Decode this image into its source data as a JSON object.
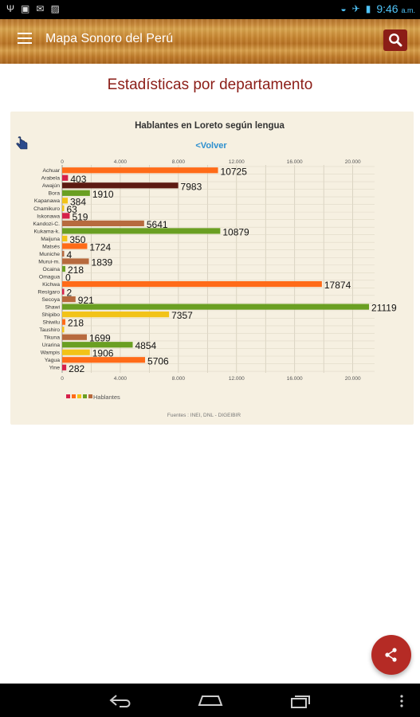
{
  "status_bar": {
    "time": "9:46",
    "ampm": "a.m."
  },
  "app": {
    "title": "Mapa Sonoro del Perú"
  },
  "page": {
    "title": "Estadísticas por departamento"
  },
  "chart": {
    "back_link": "<Volver",
    "footer": "Fuentes : INEI, DNL - DIGEIBIR",
    "legend_label": "Hablantes"
  },
  "colors": {
    "accent": "#8b1d17",
    "orange": "#ff6b18",
    "red": "#d6204a",
    "dark": "#5c1a12",
    "green": "#6a9f22",
    "yellow": "#f2c318",
    "brown": "#b76a3e",
    "share": "#b52b25"
  },
  "chart_data": {
    "type": "bar",
    "orientation": "horizontal",
    "title": "Hablantes en Loreto según lengua",
    "xlim": [
      0,
      21500
    ],
    "xticks": [
      "0",
      "4.000",
      "8.000",
      "12.000",
      "16.000",
      "20.000"
    ],
    "grid": true,
    "legend": "bottom-left",
    "categories": [
      "Achuar",
      "Arabela",
      "Awajún",
      "Bora",
      "Kapanawa",
      "Chamikuro",
      "Iskonawa",
      "Kandozi-C.",
      "Kukama-k.",
      "Maijuna",
      "Matsés",
      "Muniche",
      "Murui-m.",
      "Ocaina",
      "Omagua",
      "Kichwa",
      "Resígaro",
      "Secoya",
      "Shawi",
      "Shipibo",
      "Shiwilu",
      "Taushiro",
      "Tikuna",
      "Urarina",
      "Wampis",
      "Yagua",
      "Yine"
    ],
    "category_labels": [
      "Achuar",
      "Arabela",
      "Awajún",
      "Bora",
      "Kapanawa",
      "Chamikuro",
      "Iskonawa",
      "Kandozi-C.",
      "Kukama-k.",
      "Maijuna",
      "Matsés",
      "Muniche",
      "Murui-m.",
      "Ocaina",
      "Omagua",
      "Kichwa",
      "Resígaro",
      "Secoya",
      "Shawi",
      "Shipibo",
      "Shiwilu",
      "Taushiro",
      "Tikuna",
      "Urarina",
      "Wampis",
      "Yagua",
      "Yine"
    ],
    "series": [
      {
        "name": "Hablantes",
        "values": [
          10725,
          403,
          7983,
          1910,
          384,
          63,
          519,
          5641,
          10879,
          350,
          1724,
          4,
          1839,
          218,
          0,
          17874,
          2,
          921,
          21119,
          7357,
          218,
          1,
          1699,
          4854,
          1906,
          5706,
          282
        ]
      }
    ],
    "value_labels": [
      "10725",
      "403",
      "7983",
      "1910",
      "384",
      "63",
      "519",
      "5641",
      "10879",
      "350",
      "1724",
      "4",
      "1839",
      "218",
      "0",
      "17874",
      "2",
      "921",
      "21119",
      "7357",
      "218",
      "",
      "1699",
      "4854",
      "1906",
      "5706",
      "282"
    ],
    "bar_colors": [
      "orange",
      "red",
      "dark",
      "green",
      "yellow",
      "yellow",
      "red",
      "brown",
      "green",
      "yellow",
      "orange",
      "brown",
      "brown",
      "green",
      "red",
      "orange",
      "red",
      "brown",
      "green",
      "yellow",
      "orange",
      "yellow",
      "brown",
      "green",
      "yellow",
      "orange",
      "red"
    ]
  }
}
